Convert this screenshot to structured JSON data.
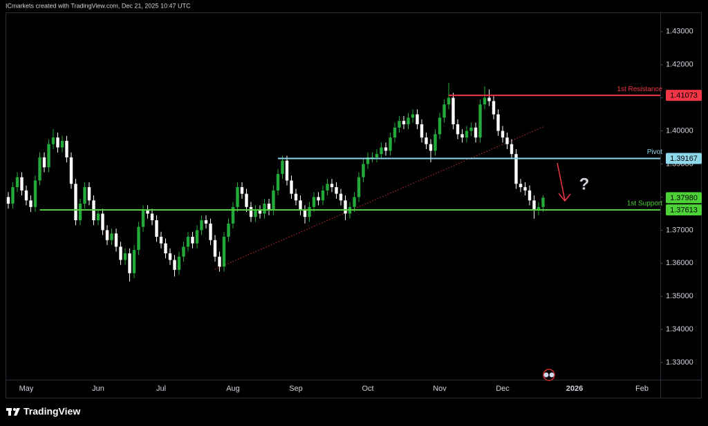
{
  "header": "ICmarkets created with TradingView.com, Dec 21, 2025 10:47 UTC",
  "footer": "TradingView",
  "chart_data": {
    "type": "candlestick",
    "categories": [
      null,
      null,
      null,
      null,
      "May",
      null,
      null,
      null,
      null,
      null,
      null,
      null,
      null,
      null,
      null,
      null,
      null,
      null,
      null,
      null,
      "Jun",
      null,
      null,
      null,
      null,
      null,
      null,
      null,
      null,
      null,
      null,
      null,
      null,
      null,
      "Jul",
      null,
      null,
      null,
      null,
      null,
      null,
      null,
      null,
      null,
      null,
      null,
      null,
      null,
      null,
      null,
      "Aug",
      null,
      null,
      null,
      null,
      null,
      null,
      null,
      null,
      null,
      null,
      null,
      null,
      null,
      "Sep",
      null,
      null,
      null,
      null,
      null,
      null,
      null,
      null,
      null,
      null,
      null,
      null,
      null,
      null,
      null,
      "Oct",
      null,
      null,
      null,
      null,
      null,
      null,
      null,
      null,
      null,
      null,
      null,
      null,
      null,
      null,
      null,
      "Nov",
      null,
      null,
      null,
      null,
      null,
      null,
      null,
      null,
      null,
      null,
      null,
      null,
      null,
      "Dec",
      null,
      null,
      null,
      null,
      null,
      null,
      null,
      null,
      null,
      null,
      null,
      null,
      null,
      null,
      null,
      "2026",
      null,
      null,
      null,
      null,
      null,
      null,
      null,
      null,
      null,
      null,
      null,
      null,
      null,
      null,
      "Feb"
    ],
    "open": [
      1.38,
      1.378,
      1.383,
      1.386,
      1.382,
      1.379,
      1.377,
      1.385,
      1.392,
      1.389,
      1.396,
      1.398,
      1.395,
      1.397,
      1.392,
      1.384,
      1.373,
      1.378,
      1.383,
      1.379,
      1.373,
      1.375,
      1.37,
      1.367,
      1.369,
      1.365,
      1.361,
      1.363,
      1.357,
      1.364,
      1.371,
      1.376,
      1.375,
      1.373,
      1.368,
      1.366,
      1.363,
      1.361,
      1.358,
      1.362,
      1.365,
      1.368,
      1.366,
      1.37,
      1.373,
      1.372,
      1.367,
      1.362,
      1.359,
      1.368,
      1.372,
      1.377,
      1.383,
      1.381,
      1.377,
      1.374,
      1.376,
      1.375,
      1.378,
      1.376,
      1.382,
      1.387,
      1.391,
      1.385,
      1.381,
      1.379,
      1.376,
      1.374,
      1.377,
      1.38,
      1.379,
      1.382,
      1.384,
      1.383,
      1.381,
      1.379,
      1.375,
      1.377,
      1.38,
      1.386,
      1.39,
      1.392,
      1.392,
      1.393,
      1.395,
      1.394,
      1.398,
      1.401,
      1.403,
      1.402,
      1.404,
      1.405,
      1.402,
      1.398,
      1.396,
      1.394,
      1.399,
      1.404,
      1.408,
      1.41,
      1.402,
      1.399,
      1.398,
      1.4,
      1.401,
      1.398,
      1.408,
      1.41,
      1.409,
      1.405,
      1.4,
      1.398,
      1.396,
      1.393,
      1.384,
      1.383,
      1.382,
      1.379,
      1.376,
      1.377,
      null,
      null,
      null,
      null,
      null,
      null,
      null,
      null,
      null,
      null,
      null,
      null,
      null,
      null,
      null,
      null,
      null,
      null,
      null,
      null,
      null,
      null
    ],
    "high": [
      1.3815,
      1.3845,
      1.3875,
      1.3875,
      1.3835,
      1.3805,
      1.3865,
      1.3935,
      1.3935,
      1.3975,
      1.4005,
      1.3995,
      1.3985,
      1.3985,
      1.3935,
      1.3855,
      1.3795,
      1.3845,
      1.3845,
      1.3805,
      1.3765,
      1.3765,
      1.3715,
      1.3705,
      1.3705,
      1.3665,
      1.3645,
      1.3645,
      1.3655,
      1.3725,
      1.3775,
      1.3775,
      1.3765,
      1.3745,
      1.3695,
      1.3675,
      1.3645,
      1.3625,
      1.3635,
      1.3665,
      1.3695,
      1.3695,
      1.3715,
      1.3745,
      1.3745,
      1.3735,
      1.3685,
      1.3635,
      1.3695,
      1.3735,
      1.3785,
      1.3845,
      1.3845,
      1.3825,
      1.3785,
      1.3775,
      1.3775,
      1.3795,
      1.3795,
      1.3835,
      1.3885,
      1.3925,
      1.3925,
      1.3865,
      1.3825,
      1.3805,
      1.3775,
      1.3785,
      1.3815,
      1.3815,
      1.3835,
      1.3855,
      1.3855,
      1.3845,
      1.3825,
      1.3805,
      1.3785,
      1.3815,
      1.3875,
      1.3915,
      1.3935,
      1.3935,
      1.3945,
      1.3965,
      1.3965,
      1.3995,
      1.4025,
      1.4045,
      1.4045,
      1.4055,
      1.4065,
      1.4065,
      1.4035,
      1.3995,
      1.3975,
      1.4005,
      1.4055,
      1.4095,
      1.4145,
      1.4115,
      1.4035,
      1.4005,
      1.4015,
      1.4025,
      1.4025,
      1.4095,
      1.4135,
      1.4125,
      1.4105,
      1.4065,
      1.4015,
      1.3995,
      1.3975,
      1.3945,
      1.3855,
      1.3845,
      1.3835,
      1.3805,
      1.3785,
      1.3805,
      null,
      null,
      null,
      null,
      null,
      null,
      null,
      null,
      null,
      null,
      null,
      null,
      null,
      null,
      null,
      null,
      null,
      null,
      null,
      null,
      null,
      null
    ],
    "low": [
      1.3765,
      1.3765,
      1.3815,
      1.3805,
      1.3775,
      1.3755,
      1.3755,
      1.3835,
      1.3875,
      1.3875,
      1.3945,
      1.3935,
      1.3935,
      1.3905,
      1.3825,
      1.3715,
      1.3715,
      1.3765,
      1.3775,
      1.3715,
      1.3715,
      1.3685,
      1.3655,
      1.3655,
      1.3635,
      1.3595,
      1.3595,
      1.3545,
      1.3555,
      1.3625,
      1.3695,
      1.3735,
      1.3715,
      1.3665,
      1.3645,
      1.3615,
      1.3595,
      1.356,
      1.3565,
      1.3605,
      1.3635,
      1.3645,
      1.3645,
      1.3685,
      1.3705,
      1.3655,
      1.3605,
      1.3575,
      1.3575,
      1.3665,
      1.3705,
      1.3755,
      1.3795,
      1.3755,
      1.3725,
      1.3725,
      1.3735,
      1.3735,
      1.3745,
      1.3745,
      1.3805,
      1.3855,
      1.3835,
      1.3795,
      1.3775,
      1.3745,
      1.372,
      1.3725,
      1.3755,
      1.3775,
      1.3775,
      1.3805,
      1.3815,
      1.3795,
      1.3775,
      1.373,
      1.3735,
      1.3755,
      1.3785,
      1.3845,
      1.3885,
      1.3905,
      1.3905,
      1.3915,
      1.3925,
      1.3925,
      1.3965,
      1.3995,
      1.4005,
      1.4005,
      1.4025,
      1.4005,
      1.3965,
      1.3945,
      1.3905,
      1.3925,
      1.3975,
      1.4025,
      1.4065,
      1.4005,
      1.3975,
      1.3965,
      1.3965,
      1.3985,
      1.3965,
      1.3965,
      1.4065,
      1.4075,
      1.4035,
      1.3985,
      1.3965,
      1.3945,
      1.3915,
      1.3825,
      1.3815,
      1.3805,
      1.3775,
      1.3735,
      1.3745,
      1.3755,
      null,
      null,
      null,
      null,
      null,
      null,
      null,
      null,
      null,
      null,
      null,
      null,
      null,
      null,
      null,
      null,
      null,
      null,
      null,
      null,
      null,
      null
    ],
    "close": [
      1.378,
      1.383,
      1.386,
      1.382,
      1.379,
      1.377,
      1.385,
      1.392,
      1.389,
      1.396,
      1.398,
      1.395,
      1.397,
      1.392,
      1.384,
      1.373,
      1.378,
      1.383,
      1.379,
      1.373,
      1.375,
      1.37,
      1.367,
      1.369,
      1.365,
      1.361,
      1.363,
      1.357,
      1.364,
      1.371,
      1.376,
      1.375,
      1.373,
      1.368,
      1.366,
      1.363,
      1.361,
      1.358,
      1.362,
      1.365,
      1.368,
      1.366,
      1.37,
      1.373,
      1.372,
      1.367,
      1.362,
      1.359,
      1.368,
      1.372,
      1.377,
      1.383,
      1.381,
      1.377,
      1.374,
      1.376,
      1.375,
      1.378,
      1.376,
      1.382,
      1.387,
      1.391,
      1.385,
      1.381,
      1.379,
      1.376,
      1.374,
      1.377,
      1.38,
      1.379,
      1.382,
      1.384,
      1.383,
      1.381,
      1.379,
      1.375,
      1.377,
      1.38,
      1.386,
      1.39,
      1.392,
      1.392,
      1.393,
      1.395,
      1.394,
      1.398,
      1.401,
      1.403,
      1.402,
      1.404,
      1.405,
      1.402,
      1.398,
      1.396,
      1.394,
      1.399,
      1.404,
      1.408,
      1.41,
      1.402,
      1.399,
      1.398,
      1.4,
      1.401,
      1.398,
      1.408,
      1.41,
      1.409,
      1.405,
      1.4,
      1.398,
      1.396,
      1.393,
      1.384,
      1.383,
      1.382,
      1.379,
      1.376,
      1.377,
      1.3798,
      null,
      null,
      null,
      null,
      null,
      null,
      null,
      null,
      null,
      null,
      null,
      null,
      null,
      null,
      null,
      null,
      null,
      null,
      null,
      null,
      null,
      null
    ],
    "up_color": "#22ab3a",
    "down_color": "#ffffff",
    "ylim": [
      1.3248,
      1.4358
    ],
    "yticks": [
      {
        "value": 1.33,
        "label": "1.33000"
      },
      {
        "value": 1.34,
        "label": "1.34000"
      },
      {
        "value": 1.35,
        "label": "1.35000"
      },
      {
        "value": 1.36,
        "label": "1.36000"
      },
      {
        "value": 1.37,
        "label": "1.37000"
      },
      {
        "value": 1.38,
        "label": "1.38000"
      },
      {
        "value": 1.39,
        "label": "1.39000"
      },
      {
        "value": 1.4,
        "label": "1.40000"
      },
      {
        "value": 1.41,
        "label": "1.41000"
      },
      {
        "value": 1.42,
        "label": "1.42000"
      },
      {
        "value": 1.43,
        "label": "1.43000"
      }
    ],
    "grid": false,
    "levels": [
      {
        "name": "1st Resistance",
        "value": 1.41073,
        "color": "#f23645",
        "start_index": 98
      },
      {
        "name": "Pivot",
        "value": 1.39167,
        "color": "#8fd8ec",
        "start_index": 60
      },
      {
        "name": "1st Support",
        "value": 1.37613,
        "color": "#4cd137",
        "start_index": 7
      }
    ],
    "last_price": {
      "value": 1.3798,
      "label": "1.37980",
      "color": "#4cd137"
    },
    "trendline": {
      "color": "#d32f2f",
      "points": [
        {
          "index": 46,
          "value": 1.3582
        },
        {
          "index": 119,
          "value": 1.4012
        }
      ]
    },
    "annotation": "?"
  }
}
